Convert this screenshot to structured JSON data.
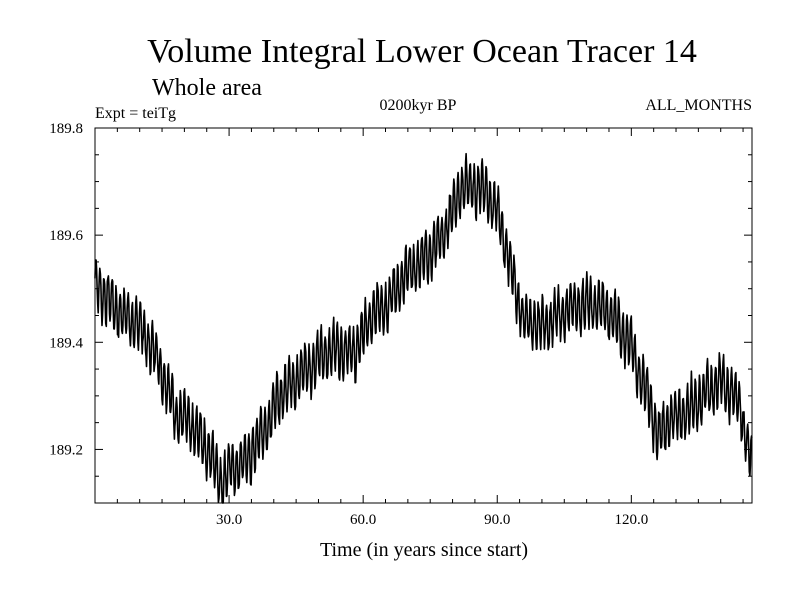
{
  "chart_data": {
    "type": "line",
    "title": "Volume Integral Lower Ocean Tracer 14",
    "subtitle": "Whole area",
    "expt_label": "Expt = teiTg",
    "period_label": "0200kyr BP",
    "months_label": "ALL_MONTHS",
    "xlabel": "Time (in years since start)",
    "ylabel": "",
    "xlim": [
      0,
      147
    ],
    "ylim": [
      189.1,
      189.8
    ],
    "xticks": [
      30,
      60,
      90,
      120
    ],
    "xtick_labels": [
      "30.0",
      "60.0",
      "90.0",
      "120.0"
    ],
    "yticks": [
      189.2,
      189.4,
      189.6,
      189.8
    ],
    "ytick_labels": [
      "189.2",
      "189.4",
      "189.6",
      "189.8"
    ],
    "oscillation_amplitude": 0.045,
    "oscillation_period_years": 0.9,
    "series": [
      {
        "name": "Lower Ocean Tracer 14",
        "trend_x": [
          0,
          5,
          10,
          14,
          18,
          22,
          26,
          28,
          30,
          34,
          38,
          42,
          46,
          50,
          54,
          58,
          62,
          66,
          70,
          74,
          78,
          82,
          86,
          88,
          90,
          92,
          94,
          96,
          100,
          104,
          108,
          112,
          116,
          120,
          124,
          126,
          128,
          132,
          136,
          140,
          144,
          147
        ],
        "trend_y": [
          189.51,
          189.46,
          189.43,
          189.37,
          189.27,
          189.24,
          189.19,
          189.14,
          189.16,
          189.18,
          189.24,
          189.31,
          189.34,
          189.37,
          189.39,
          189.38,
          189.45,
          189.48,
          189.53,
          189.56,
          189.6,
          189.69,
          189.69,
          189.68,
          189.64,
          189.58,
          189.5,
          189.44,
          189.43,
          189.45,
          189.47,
          189.47,
          189.45,
          189.39,
          189.29,
          189.22,
          189.25,
          189.27,
          189.3,
          189.33,
          189.29,
          189.17
        ]
      }
    ]
  }
}
